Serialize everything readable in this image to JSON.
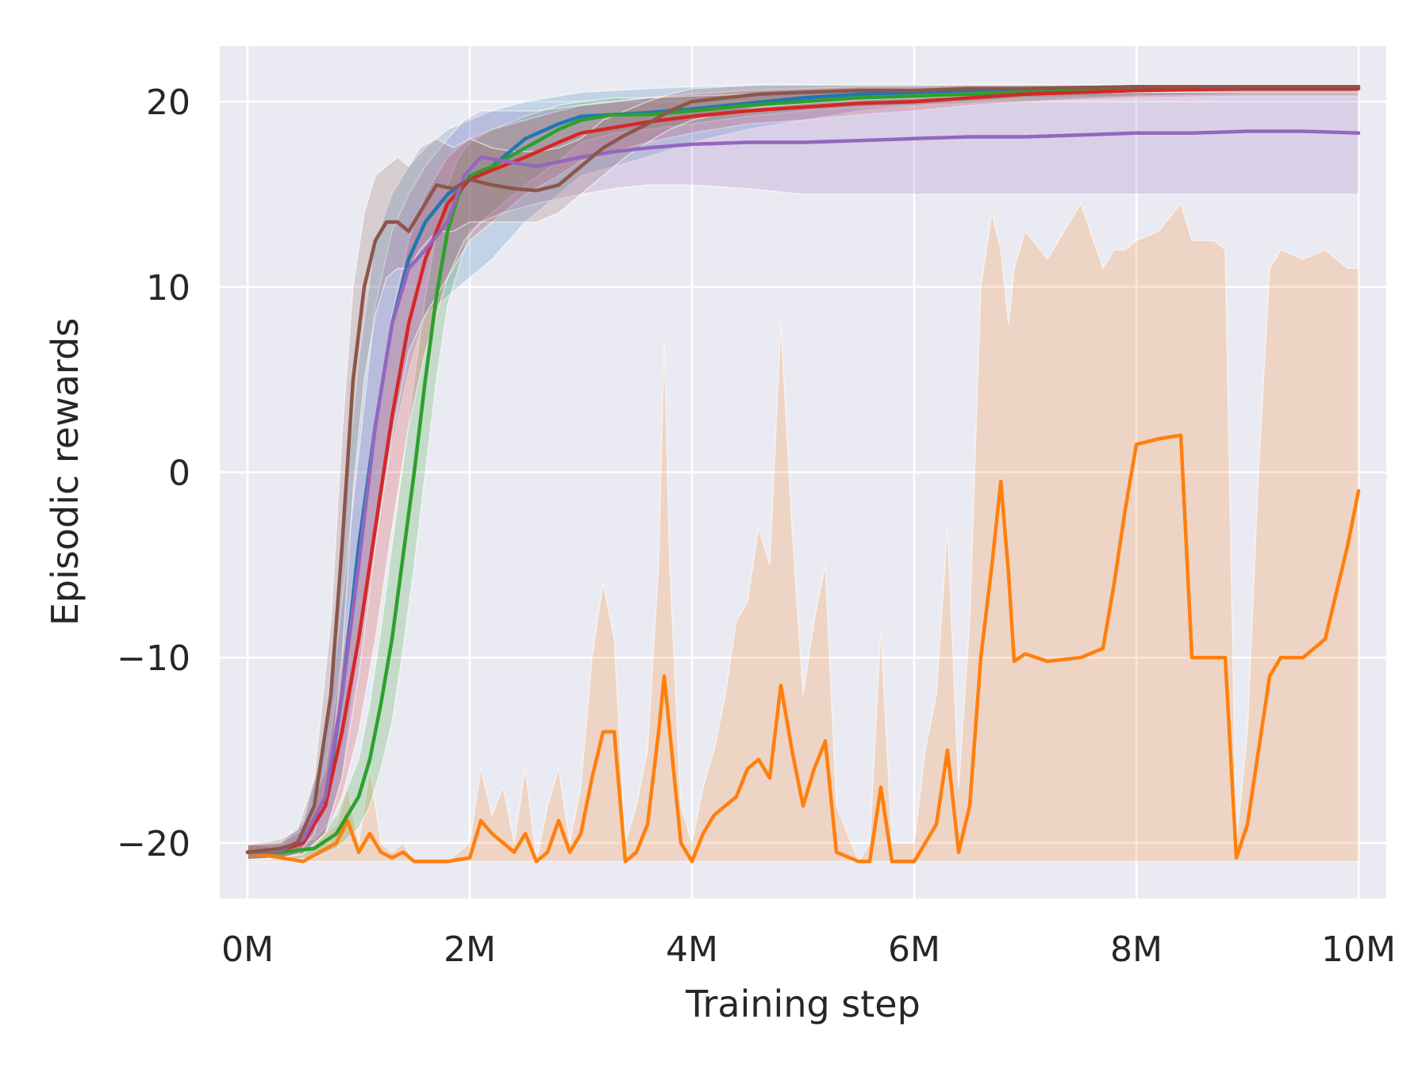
{
  "chart_data": {
    "type": "line",
    "title": "",
    "xlabel": "Training step",
    "ylabel": "Episodic rewards",
    "xlim": [
      -0.25,
      10.25
    ],
    "ylim": [
      -23,
      23
    ],
    "grid": true,
    "legend": "none",
    "x_ticks": [
      {
        "value": 0,
        "label": "0M"
      },
      {
        "value": 2,
        "label": "2M"
      },
      {
        "value": 4,
        "label": "4M"
      },
      {
        "value": 6,
        "label": "6M"
      },
      {
        "value": 8,
        "label": "8M"
      },
      {
        "value": 10,
        "label": "10M"
      }
    ],
    "y_ticks": [
      {
        "value": -20,
        "label": "−20"
      },
      {
        "value": -10,
        "label": "−10"
      },
      {
        "value": 0,
        "label": "0"
      },
      {
        "value": 10,
        "label": "10"
      },
      {
        "value": 20,
        "label": "20"
      }
    ],
    "series": [
      {
        "name": "blue",
        "color": "#1f77b4",
        "x": [
          0,
          0.3,
          0.5,
          0.7,
          0.85,
          1.0,
          1.15,
          1.3,
          1.45,
          1.6,
          1.8,
          2.0,
          2.2,
          2.5,
          2.8,
          3.0,
          3.3,
          3.6,
          4.0,
          4.5,
          5.0,
          5.5,
          6.0,
          6.5,
          7.0,
          8.0,
          9.0,
          10.0
        ],
        "values": [
          -20.5,
          -20.4,
          -20.0,
          -18.0,
          -12.0,
          -4.0,
          2.5,
          8.0,
          11.5,
          13.5,
          15.0,
          15.8,
          16.5,
          18.0,
          18.8,
          19.2,
          19.3,
          19.4,
          19.6,
          19.9,
          20.2,
          20.4,
          20.5,
          20.6,
          20.7,
          20.8,
          20.8,
          20.8
        ],
        "lower": [
          -20.9,
          -20.8,
          -20.6,
          -19.5,
          -16.5,
          -9.5,
          -3.0,
          1.5,
          5.5,
          8.5,
          9.5,
          10.5,
          11.5,
          13.5,
          15.0,
          16.0,
          16.5,
          17.0,
          17.8,
          18.5,
          19.0,
          19.5,
          19.8,
          20.0,
          20.2,
          20.3,
          20.4,
          20.4
        ],
        "upper": [
          -20.1,
          -20.0,
          -19.0,
          -14.0,
          -3.0,
          6.0,
          12.5,
          15.0,
          16.5,
          17.5,
          18.5,
          19.0,
          19.5,
          20.0,
          20.3,
          20.5,
          20.6,
          20.7,
          20.8,
          20.9,
          20.9,
          20.9,
          20.9,
          20.9,
          20.9,
          20.9,
          20.9,
          20.9
        ]
      },
      {
        "name": "orange",
        "color": "#ff7f0e",
        "x": [
          0,
          0.5,
          0.8,
          0.9,
          1.0,
          1.1,
          1.2,
          1.3,
          1.4,
          1.5,
          1.6,
          1.8,
          2.0,
          2.1,
          2.2,
          2.3,
          2.4,
          2.5,
          2.6,
          2.7,
          2.8,
          2.9,
          3.0,
          3.1,
          3.2,
          3.3,
          3.4,
          3.5,
          3.6,
          3.7,
          3.75,
          3.8,
          3.9,
          4.0,
          4.1,
          4.2,
          4.3,
          4.4,
          4.5,
          4.6,
          4.7,
          4.8,
          4.9,
          5.0,
          5.1,
          5.2,
          5.3,
          5.5,
          5.6,
          5.7,
          5.8,
          6.0,
          6.1,
          6.2,
          6.3,
          6.4,
          6.5,
          6.6,
          6.7,
          6.78,
          6.85,
          6.9,
          7.0,
          7.2,
          7.5,
          7.7,
          7.8,
          7.9,
          8.0,
          8.2,
          8.4,
          8.5,
          8.7,
          8.8,
          8.9,
          9.0,
          9.1,
          9.2,
          9.3,
          9.5,
          9.7,
          9.8,
          9.9,
          10.0
        ],
        "values": [
          -20.5,
          -21.0,
          -20.0,
          -18.8,
          -20.5,
          -19.5,
          -20.5,
          -20.8,
          -20.5,
          -21.0,
          -21.0,
          -21.0,
          -20.8,
          -18.8,
          -19.5,
          -20.0,
          -20.5,
          -19.5,
          -21.0,
          -20.5,
          -18.8,
          -20.5,
          -19.5,
          -16.5,
          -14.0,
          -14.0,
          -21.0,
          -20.5,
          -19.0,
          -14.0,
          -11.0,
          -14.0,
          -20.0,
          -21.0,
          -19.5,
          -18.5,
          -18.0,
          -17.5,
          -16.0,
          -15.5,
          -16.5,
          -11.5,
          -15.0,
          -18.0,
          -16.0,
          -14.5,
          -20.5,
          -21.0,
          -21.0,
          -17.0,
          -21.0,
          -21.0,
          -20.0,
          -19.0,
          -15.0,
          -20.5,
          -18.0,
          -10.0,
          -5.0,
          -0.5,
          -5.5,
          -10.2,
          -9.8,
          -10.2,
          -10.0,
          -9.5,
          -6.0,
          -2.0,
          1.5,
          1.8,
          2.0,
          -10.0,
          -10.0,
          -10.0,
          -20.8,
          -19.0,
          -15.0,
          -11.0,
          -10.0,
          -10.0,
          -9.0,
          -6.5,
          -4.0,
          -1.0
        ],
        "lower": [
          -21,
          -21,
          -21,
          -21,
          -21,
          -21,
          -21,
          -21,
          -21,
          -21,
          -21,
          -21,
          -21,
          -21,
          -21,
          -21,
          -21,
          -21,
          -21,
          -21,
          -21,
          -21,
          -21,
          -21,
          -21,
          -21,
          -21,
          -21,
          -21,
          -21,
          -21,
          -21,
          -21,
          -21,
          -21,
          -21,
          -21,
          -21,
          -21,
          -21,
          -21,
          -21,
          -21,
          -21,
          -21,
          -21,
          -21,
          -21,
          -21,
          -21,
          -21,
          -21,
          -21,
          -21,
          -21,
          -21,
          -21,
          -21,
          -21,
          -21,
          -21,
          -21,
          -21,
          -21,
          -21,
          -21,
          -21,
          -21,
          -21,
          -21,
          -21,
          -21,
          -21,
          -21,
          -21,
          -21,
          -21,
          -21,
          -21,
          -21,
          -21,
          -21,
          -21,
          -21
        ],
        "upper": [
          -20.0,
          -20.5,
          -19.0,
          -17.0,
          -20.0,
          -16.0,
          -20.0,
          -20.5,
          -20.0,
          -21.0,
          -21.0,
          -21.0,
          -20.0,
          -16.0,
          -18.5,
          -17.0,
          -20.0,
          -16.0,
          -21.0,
          -18.0,
          -16.0,
          -20.0,
          -17.0,
          -10.0,
          -6.0,
          -9.0,
          -20.0,
          -18.0,
          -15.0,
          -5.0,
          7.0,
          -5.0,
          -18.0,
          -20.0,
          -17.0,
          -15.0,
          -12.0,
          -8.0,
          -7.0,
          -3.0,
          -5.0,
          8.0,
          -3.0,
          -12.0,
          -8.0,
          -5.0,
          -18.0,
          -21.0,
          -20.0,
          -8.5,
          -20.0,
          -20.0,
          -15.0,
          -12.0,
          -3.0,
          -17.0,
          -8.0,
          10.0,
          14.0,
          12.0,
          8.0,
          11.0,
          13.0,
          11.5,
          14.5,
          11.0,
          12.0,
          12.0,
          12.5,
          13.0,
          14.5,
          12.5,
          12.5,
          12.0,
          -20.0,
          -14.0,
          0.0,
          11.0,
          12.0,
          11.5,
          12.0,
          11.5,
          11.0,
          11.0
        ]
      },
      {
        "name": "green",
        "color": "#2ca02c",
        "x": [
          0,
          0.3,
          0.6,
          0.8,
          1.0,
          1.1,
          1.2,
          1.3,
          1.4,
          1.5,
          1.6,
          1.7,
          1.8,
          1.9,
          2.0,
          2.2,
          2.5,
          2.8,
          3.0,
          3.3,
          3.6,
          4.0,
          4.5,
          5.0,
          5.5,
          6.0,
          6.5,
          7.0,
          8.0,
          9.0,
          10.0
        ],
        "values": [
          -20.5,
          -20.5,
          -20.3,
          -19.5,
          -17.5,
          -15.5,
          -12.5,
          -9.0,
          -4.5,
          0.0,
          5.0,
          9.5,
          13.0,
          15.0,
          16.0,
          16.5,
          17.5,
          18.5,
          19.0,
          19.3,
          19.3,
          19.5,
          19.8,
          20.0,
          20.2,
          20.3,
          20.4,
          20.5,
          20.7,
          20.8,
          20.8
        ],
        "lower": [
          -20.9,
          -20.9,
          -20.8,
          -20.3,
          -19.2,
          -18.0,
          -16.0,
          -13.5,
          -9.5,
          -5.0,
          0.0,
          5.0,
          9.0,
          11.0,
          13.0,
          14.0,
          15.5,
          16.8,
          17.8,
          18.3,
          18.5,
          18.8,
          19.2,
          19.5,
          19.7,
          19.8,
          19.9,
          20.0,
          20.3,
          20.4,
          20.4
        ],
        "upper": [
          -20.1,
          -20.1,
          -19.8,
          -18.5,
          -15.5,
          -12.5,
          -8.5,
          -4.0,
          0.5,
          5.0,
          9.5,
          13.0,
          15.5,
          17.0,
          17.8,
          18.5,
          19.2,
          19.8,
          20.0,
          20.2,
          20.2,
          20.3,
          20.4,
          20.5,
          20.6,
          20.7,
          20.8,
          20.8,
          20.9,
          20.9,
          20.9
        ]
      },
      {
        "name": "red",
        "color": "#d62728",
        "x": [
          0,
          0.3,
          0.5,
          0.7,
          0.85,
          1.0,
          1.15,
          1.3,
          1.45,
          1.6,
          1.8,
          2.0,
          2.2,
          2.5,
          2.8,
          3.0,
          3.3,
          3.6,
          4.0,
          4.5,
          5.0,
          5.5,
          6.0,
          6.5,
          7.0,
          8.0,
          9.0,
          10.0
        ],
        "values": [
          -20.5,
          -20.4,
          -20.0,
          -18.0,
          -14.0,
          -9.0,
          -3.0,
          3.0,
          8.0,
          11.5,
          14.5,
          15.8,
          16.3,
          17.0,
          17.8,
          18.3,
          18.6,
          18.9,
          19.2,
          19.5,
          19.7,
          19.9,
          20.0,
          20.2,
          20.4,
          20.6,
          20.7,
          20.7
        ],
        "lower": [
          -20.9,
          -20.8,
          -20.6,
          -19.5,
          -17.5,
          -14.0,
          -9.0,
          -3.0,
          2.5,
          6.5,
          10.5,
          12.5,
          13.5,
          15.0,
          16.0,
          16.8,
          17.3,
          17.8,
          18.3,
          18.8,
          19.0,
          19.3,
          19.5,
          19.8,
          20.0,
          20.2,
          20.3,
          20.3
        ],
        "upper": [
          -20.1,
          -20.0,
          -19.3,
          -16.0,
          -10.0,
          -4.0,
          3.0,
          8.5,
          12.5,
          15.0,
          17.0,
          18.0,
          18.5,
          19.0,
          19.5,
          19.8,
          20.0,
          20.2,
          20.4,
          20.6,
          20.7,
          20.8,
          20.8,
          20.9,
          20.9,
          20.9,
          20.9,
          20.9
        ]
      },
      {
        "name": "purple",
        "color": "#9467bd",
        "x": [
          0,
          0.3,
          0.5,
          0.7,
          0.85,
          1.0,
          1.15,
          1.3,
          1.45,
          1.6,
          1.8,
          1.95,
          2.1,
          2.3,
          2.6,
          3.0,
          3.3,
          3.6,
          4.0,
          4.5,
          5.0,
          5.5,
          6.0,
          6.5,
          7.0,
          7.5,
          8.0,
          8.5,
          9.0,
          9.5,
          10.0
        ],
        "values": [
          -20.5,
          -20.4,
          -19.8,
          -17.5,
          -12.0,
          -5.0,
          2.5,
          8.0,
          11.0,
          12.0,
          13.5,
          16.0,
          17.0,
          16.8,
          16.5,
          17.0,
          17.3,
          17.5,
          17.7,
          17.8,
          17.8,
          17.9,
          18.0,
          18.1,
          18.1,
          18.2,
          18.3,
          18.3,
          18.4,
          18.4,
          18.3
        ],
        "lower": [
          -20.9,
          -20.8,
          -20.6,
          -19.5,
          -16.5,
          -11.0,
          -4.0,
          2.0,
          6.5,
          8.5,
          10.5,
          12.5,
          13.5,
          14.0,
          14.5,
          15.0,
          15.3,
          15.5,
          15.5,
          15.3,
          15.0,
          15.0,
          15.0,
          15.0,
          15.0,
          15.0,
          15.0,
          15.0,
          15.0,
          15.0,
          15.0
        ],
        "upper": [
          -20.1,
          -20.0,
          -18.8,
          -14.5,
          -7.0,
          1.0,
          9.0,
          13.0,
          15.0,
          16.5,
          18.0,
          19.0,
          19.5,
          19.5,
          19.5,
          19.8,
          20.0,
          20.2,
          20.3,
          20.4,
          20.5,
          20.5,
          20.5,
          20.5,
          20.5,
          20.5,
          20.5,
          20.5,
          20.5,
          20.5,
          20.5
        ]
      },
      {
        "name": "brown",
        "color": "#8c564b",
        "x": [
          0,
          0.3,
          0.45,
          0.6,
          0.75,
          0.85,
          0.95,
          1.05,
          1.15,
          1.25,
          1.35,
          1.45,
          1.55,
          1.7,
          1.85,
          2.0,
          2.2,
          2.4,
          2.6,
          2.8,
          3.0,
          3.2,
          3.4,
          3.6,
          3.8,
          4.0,
          4.3,
          4.6,
          5.0,
          5.5,
          6.0,
          6.5,
          7.0,
          8.0,
          9.0,
          10.0
        ],
        "values": [
          -20.5,
          -20.3,
          -20.0,
          -18.0,
          -12.0,
          -4.0,
          5.0,
          10.0,
          12.5,
          13.5,
          13.5,
          13.0,
          14.0,
          15.5,
          15.3,
          15.8,
          15.5,
          15.3,
          15.2,
          15.5,
          16.5,
          17.5,
          18.2,
          18.8,
          19.5,
          20.0,
          20.2,
          20.4,
          20.5,
          20.6,
          20.6,
          20.7,
          20.7,
          20.8,
          20.8,
          20.8
        ],
        "lower": [
          -20.9,
          -20.8,
          -20.6,
          -19.5,
          -16.0,
          -10.0,
          -1.0,
          5.0,
          8.5,
          10.5,
          11.0,
          11.0,
          12.0,
          13.0,
          13.0,
          13.5,
          13.5,
          13.5,
          13.5,
          14.0,
          15.0,
          16.0,
          17.0,
          17.8,
          18.5,
          19.0,
          19.4,
          19.7,
          19.9,
          20.1,
          20.2,
          20.3,
          20.4,
          20.5,
          20.5,
          20.5
        ],
        "upper": [
          -20.1,
          -19.8,
          -19.3,
          -16.5,
          -8.0,
          2.0,
          10.0,
          14.0,
          16.0,
          16.5,
          17.0,
          16.5,
          17.5,
          18.0,
          17.5,
          18.0,
          17.5,
          17.3,
          17.3,
          17.5,
          18.0,
          19.0,
          19.5,
          20.0,
          20.4,
          20.7,
          20.8,
          20.9,
          20.9,
          20.9,
          20.9,
          20.9,
          20.9,
          20.9,
          20.9,
          20.9
        ]
      }
    ]
  }
}
